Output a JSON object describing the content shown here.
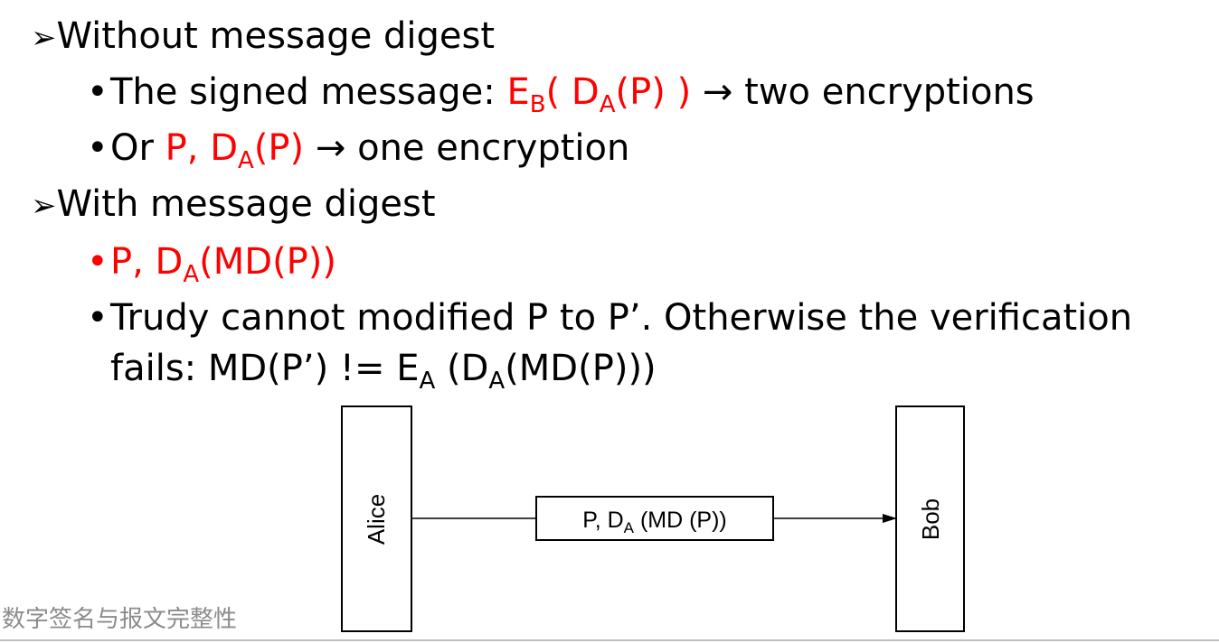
{
  "slide": {
    "h1": {
      "bullet": "➢",
      "text": "Without message digest"
    },
    "b1": {
      "bullet": "•",
      "prefix": "The signed message: ",
      "e": "E",
      "e_sub": "B",
      "mid1": "( D",
      "d_sub": "A",
      "mid2": "(P) )",
      "suffix": " → two encryptions"
    },
    "b2": {
      "bullet": "•",
      "prefix": "Or ",
      "p": "P, D",
      "d_sub": "A",
      "mid": "(P)",
      "suffix": " → one encryption"
    },
    "h2": {
      "bullet": "➢",
      "text": "With message digest"
    },
    "b3": {
      "bullet": "•",
      "p": "P, D",
      "d_sub": "A",
      "mid": "(MD(P))"
    },
    "b4": {
      "bullet": "•",
      "line1": "Trudy cannot modified P to P’. Otherwise the verification",
      "l2_a": "fails: MD(P’) != E",
      "l2_e_sub": "A",
      "l2_b": " (D",
      "l2_d_sub": "A",
      "l2_c": "(MD(P)))"
    }
  },
  "diagram": {
    "sender": "Alice",
    "receiver": "Bob",
    "message_main": "P, D",
    "message_sub": "A",
    "message_tail": " (MD (P))"
  },
  "footer": {
    "text": "数字签名与报文完整性"
  },
  "colors": {
    "highlight": "#ff0000",
    "footer": "#8c8c8c"
  }
}
